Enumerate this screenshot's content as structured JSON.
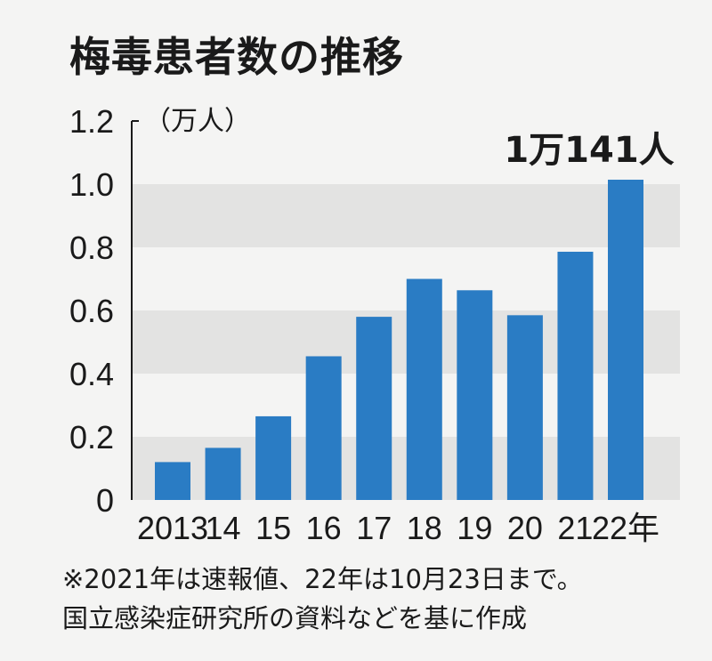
{
  "chart_data": {
    "type": "bar",
    "title": "梅毒患者数の推移",
    "unit_label": "（万人）",
    "categories": [
      "2013",
      "14",
      "15",
      "16",
      "17",
      "18",
      "19",
      "20",
      "21",
      "22年"
    ],
    "values": [
      0.12,
      0.165,
      0.265,
      0.455,
      0.58,
      0.7,
      0.664,
      0.585,
      0.786,
      1.0141
    ],
    "y_ticks": [
      "0",
      "0.2",
      "0.4",
      "0.6",
      "0.8",
      "1.0",
      "1.2"
    ],
    "ylim": [
      0,
      1.2
    ],
    "annotation": "1万141人",
    "bar_color": "#2a7cc4",
    "band_color": "#e3e3e2"
  },
  "notes": {
    "line1": "※2021年は速報値、22年は10月23日まで。",
    "line2": "国立感染症研究所の資料などを基に作成"
  }
}
